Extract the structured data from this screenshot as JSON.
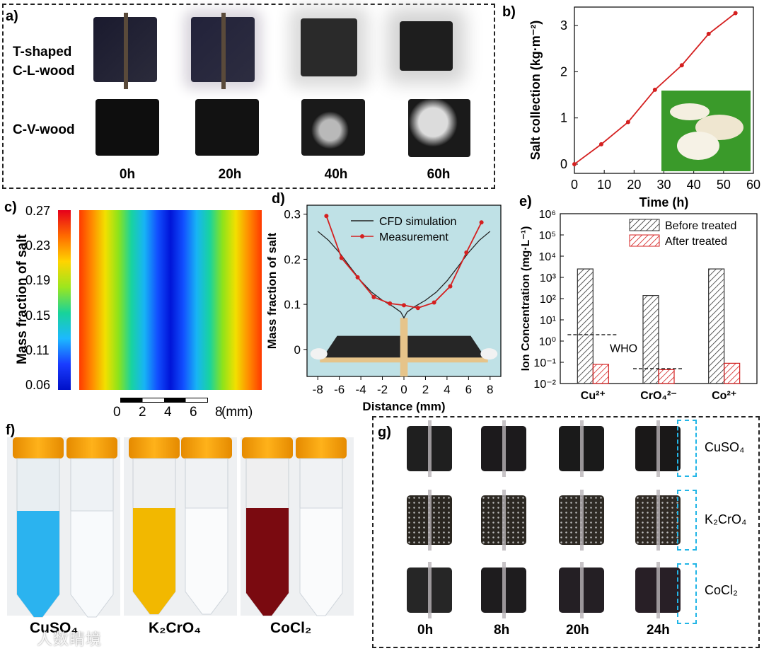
{
  "panel_a": {
    "label": "a)",
    "rows": [
      "T-shaped C-L-wood",
      "C-V-wood"
    ],
    "row1_line1": "T-shaped",
    "row1_line2": "C-L-wood",
    "row2": "C-V-wood",
    "times": [
      "0h",
      "20h",
      "40h",
      "60h"
    ]
  },
  "panel_b": {
    "label": "b)"
  },
  "panel_c": {
    "label": "c)",
    "colorbar_title": "Mass fraction of salt",
    "colorbar_ticks": [
      "0.27",
      "0.23",
      "0.19",
      "0.15",
      "0.11",
      "0.06"
    ],
    "scale_ticks": [
      "0",
      "2",
      "4",
      "6",
      "8"
    ],
    "scale_unit": "(mm)"
  },
  "panel_d": {
    "label": "d)"
  },
  "panel_e": {
    "label": "e)",
    "who_label": "WHO"
  },
  "panel_f": {
    "label": "f)",
    "tubes": [
      "CuSO₄",
      "K₂CrO₄",
      "CoCl₂"
    ]
  },
  "panel_g": {
    "label": "g)",
    "times": [
      "0h",
      "8h",
      "20h",
      "24h"
    ],
    "rows": [
      "CuSO₄",
      "K₂CrO₄",
      "CoCl₂"
    ]
  },
  "watermark": "人数睛境",
  "chart_data": [
    {
      "panel": "b",
      "type": "line",
      "xlabel": "Time (h)",
      "ylabel": "Salt collection (kg·m⁻²)",
      "xlim": [
        0,
        60
      ],
      "ylim": [
        -0.2,
        3.4
      ],
      "xticks": [
        0,
        10,
        20,
        30,
        40,
        50,
        60
      ],
      "yticks": [
        0,
        1,
        2,
        3
      ],
      "x": [
        0,
        9,
        18,
        27,
        36,
        45,
        54
      ],
      "y": [
        0.0,
        0.43,
        0.91,
        1.61,
        2.14,
        2.82,
        3.27
      ],
      "color": "#d42020",
      "grid": false
    },
    {
      "panel": "d",
      "type": "line",
      "xlabel": "Distance (mm)",
      "ylabel": "Mass fraction of salt",
      "xlim": [
        -9,
        9
      ],
      "ylim": [
        -0.06,
        0.32
      ],
      "xticks": [
        -8,
        -6,
        -4,
        -2,
        0,
        2,
        4,
        6,
        8
      ],
      "yticks": [
        0,
        0.1,
        0.2,
        0.3
      ],
      "series": [
        {
          "name": "CFD simulation",
          "color": "#222222",
          "x": [
            -8,
            -7,
            -6,
            -5,
            -4,
            -3,
            -2,
            -1,
            -0.3,
            0,
            0.3,
            1,
            2,
            3,
            4,
            5,
            6,
            7,
            8
          ],
          "y": [
            0.262,
            0.242,
            0.215,
            0.183,
            0.152,
            0.127,
            0.109,
            0.095,
            0.083,
            0.07,
            0.083,
            0.095,
            0.109,
            0.127,
            0.152,
            0.183,
            0.215,
            0.242,
            0.262
          ]
        },
        {
          "name": "Measurement",
          "color": "#d42020",
          "x": [
            -7.2,
            -5.8,
            -4.3,
            -2.8,
            -1.3,
            0,
            1.3,
            2.8,
            4.3,
            5.8,
            7.2
          ],
          "y": [
            0.296,
            0.203,
            0.16,
            0.116,
            0.102,
            0.098,
            0.092,
            0.104,
            0.14,
            0.215,
            0.282
          ]
        }
      ],
      "legend": "top-right",
      "background": "#bfe1e6"
    },
    {
      "panel": "e",
      "type": "bar",
      "ylabel": "Ion Concentration (mg·L⁻¹)",
      "yscale": "log",
      "ylim": [
        0.01,
        1000000
      ],
      "ytick_labels": [
        "10⁻²",
        "10⁻¹",
        "10⁰",
        "10¹",
        "10²",
        "10³",
        "10⁴",
        "10⁵",
        "10⁶"
      ],
      "categories": [
        "Cu²⁺",
        "CrO₄²⁻",
        "Co²⁺"
      ],
      "series": [
        {
          "name": "Before treated",
          "values": [
            2500,
            140,
            2500
          ],
          "hatch": "#333333"
        },
        {
          "name": "After treated",
          "values": [
            0.08,
            0.045,
            0.09
          ],
          "hatch": "#d42020"
        }
      ],
      "who_limits": [
        2,
        0.05,
        null
      ],
      "legend": "top-right"
    }
  ]
}
